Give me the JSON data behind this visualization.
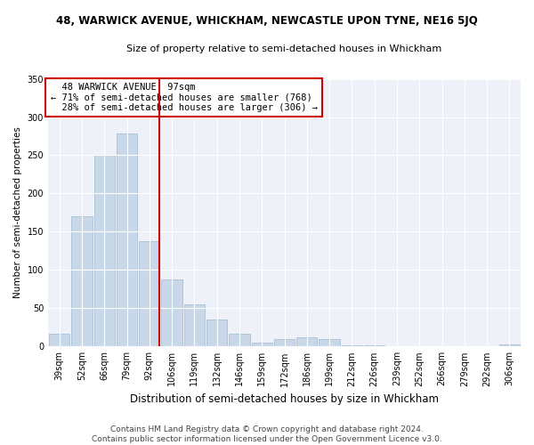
{
  "title": "48, WARWICK AVENUE, WHICKHAM, NEWCASTLE UPON TYNE, NE16 5JQ",
  "subtitle": "Size of property relative to semi-detached houses in Whickham",
  "xlabel": "Distribution of semi-detached houses by size in Whickham",
  "ylabel": "Number of semi-detached properties",
  "footer": "Contains HM Land Registry data © Crown copyright and database right 2024.\nContains public sector information licensed under the Open Government Licence v3.0.",
  "categories": [
    "39sqm",
    "52sqm",
    "66sqm",
    "79sqm",
    "92sqm",
    "106sqm",
    "119sqm",
    "132sqm",
    "146sqm",
    "159sqm",
    "172sqm",
    "186sqm",
    "199sqm",
    "212sqm",
    "226sqm",
    "239sqm",
    "252sqm",
    "266sqm",
    "279sqm",
    "292sqm",
    "306sqm"
  ],
  "values": [
    17,
    170,
    250,
    278,
    138,
    88,
    55,
    35,
    17,
    5,
    10,
    12,
    10,
    1,
    1,
    0,
    0,
    0,
    0,
    0,
    3
  ],
  "property_label": "48 WARWICK AVENUE: 97sqm",
  "pct_smaller": 71,
  "pct_larger": 28,
  "n_smaller": 768,
  "n_larger": 306,
  "marker_bar_index": 4,
  "bar_color": "#c8d8e8",
  "bar_edge_color": "#a0b8d0",
  "marker_color": "#cc0000",
  "background_color": "#ffffff",
  "plot_bg_color": "#eef2f8",
  "grid_color": "#ffffff",
  "ylim": [
    0,
    350
  ],
  "yticks": [
    0,
    50,
    100,
    150,
    200,
    250,
    300,
    350
  ],
  "title_fontsize": 8.5,
  "subtitle_fontsize": 8,
  "ylabel_fontsize": 7.5,
  "xlabel_fontsize": 8.5,
  "tick_fontsize": 7,
  "ann_fontsize": 7.5,
  "footer_fontsize": 6.5
}
